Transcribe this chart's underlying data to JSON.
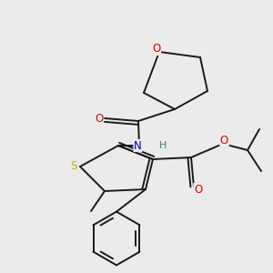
{
  "background_color": "#ebebeb",
  "bond_color": "#1a1a1a",
  "atom_colors": {
    "O": "#e00000",
    "N": "#0000cc",
    "S": "#b8b800",
    "C": "#1a1a1a",
    "H": "#408080"
  },
  "figsize": [
    3.0,
    3.0
  ],
  "dpi": 100,
  "lw": 1.4
}
